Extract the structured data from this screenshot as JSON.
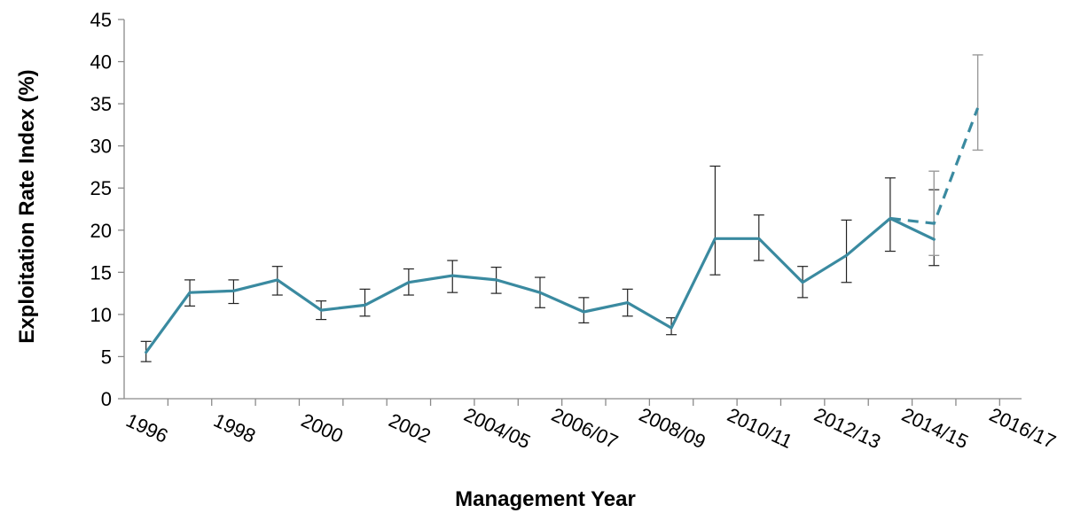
{
  "chart_data": {
    "type": "line",
    "title": "",
    "xlabel": "Management Year",
    "ylabel": "Exploitation Rate Index (%)",
    "ylim": [
      0,
      45
    ],
    "yticks": [
      0,
      5,
      10,
      15,
      20,
      25,
      30,
      35,
      40,
      45
    ],
    "xtick_labels": [
      "1996",
      "1998",
      "2000",
      "2002",
      "2004/05",
      "2006/07",
      "2008/09",
      "2010/11",
      "2012/13",
      "2014/15",
      "2016/17"
    ],
    "xtick_positions": [
      0,
      2,
      4,
      6,
      8,
      10,
      12,
      14,
      16,
      18,
      20
    ],
    "x_count": 21,
    "grid": false,
    "series": [
      {
        "style": "solid",
        "color": "#3a8aa0",
        "points": [
          {
            "x": 0,
            "y": 5.5,
            "low": 4.4,
            "high": 6.8
          },
          {
            "x": 1,
            "y": 12.6,
            "low": 11.0,
            "high": 14.1
          },
          {
            "x": 2,
            "y": 12.8,
            "low": 11.3,
            "high": 14.1
          },
          {
            "x": 3,
            "y": 14.1,
            "low": 12.3,
            "high": 15.7
          },
          {
            "x": 4,
            "y": 10.5,
            "low": 9.4,
            "high": 11.6
          },
          {
            "x": 5,
            "y": 11.1,
            "low": 9.8,
            "high": 13.0
          },
          {
            "x": 6,
            "y": 13.8,
            "low": 12.3,
            "high": 15.4
          },
          {
            "x": 7,
            "y": 14.6,
            "low": 12.6,
            "high": 16.4
          },
          {
            "x": 8,
            "y": 14.1,
            "low": 12.5,
            "high": 15.6
          },
          {
            "x": 9,
            "y": 12.6,
            "low": 10.8,
            "high": 14.4
          },
          {
            "x": 10,
            "y": 10.3,
            "low": 9.0,
            "high": 12.0
          },
          {
            "x": 11,
            "y": 11.4,
            "low": 9.8,
            "high": 13.0
          },
          {
            "x": 12,
            "y": 8.4,
            "low": 7.6,
            "high": 9.6
          },
          {
            "x": 13,
            "y": 19.0,
            "low": 14.7,
            "high": 27.6
          },
          {
            "x": 14,
            "y": 19.0,
            "low": 16.4,
            "high": 21.8
          },
          {
            "x": 15,
            "y": 13.8,
            "low": 12.0,
            "high": 15.7
          },
          {
            "x": 16,
            "y": 17.0,
            "low": 13.8,
            "high": 21.2
          },
          {
            "x": 17,
            "y": 21.4,
            "low": 17.5,
            "high": 26.2
          },
          {
            "x": 18,
            "y": 18.9,
            "low": 15.8,
            "high": 24.8
          }
        ]
      },
      {
        "style": "dashed",
        "color": "#3a8aa0",
        "points": [
          {
            "x": 17,
            "y": 21.4
          },
          {
            "x": 18,
            "y": 20.8,
            "low": 17.0,
            "high": 27.0
          },
          {
            "x": 19,
            "y": 34.5,
            "low": 29.5,
            "high": 40.8
          }
        ]
      }
    ]
  }
}
